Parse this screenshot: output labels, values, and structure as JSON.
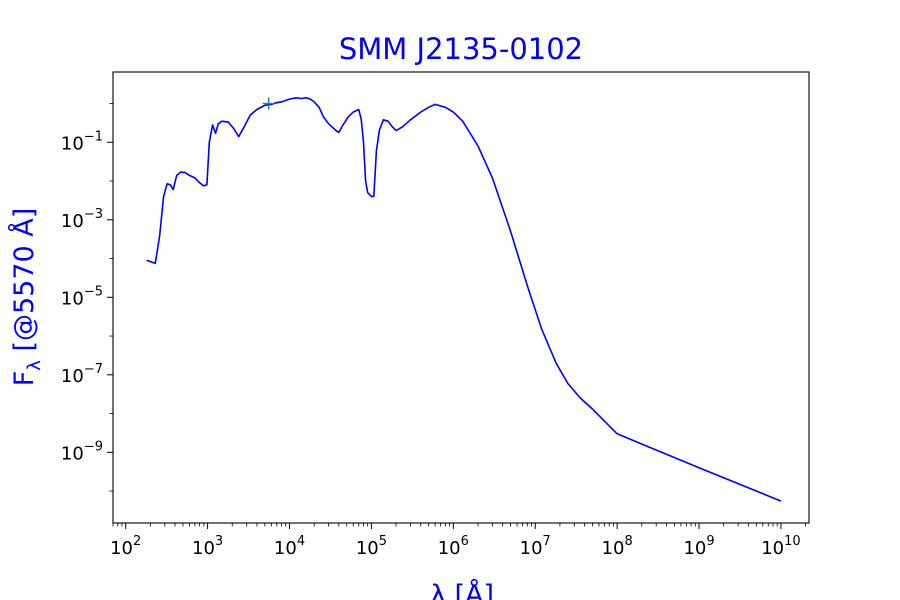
{
  "chart_data": {
    "type": "line",
    "title": "SMM J2135-0102",
    "xlabel": "λ [Å]",
    "ylabel": "F",
    "ylabel_subscript": "λ",
    "ylabel_suffix": " [@5570 Å]",
    "x_scale": "log",
    "y_scale": "log",
    "xlim": [
      70,
      22000000000.0
    ],
    "ylim": [
      1.5e-11,
      6.5
    ],
    "grid": false,
    "x_ticks": [
      {
        "base": "10",
        "exp": "2",
        "value": 100
      },
      {
        "base": "10",
        "exp": "3",
        "value": 1000
      },
      {
        "base": "10",
        "exp": "4",
        "value": 10000
      },
      {
        "base": "10",
        "exp": "5",
        "value": 100000
      },
      {
        "base": "10",
        "exp": "6",
        "value": 1000000
      },
      {
        "base": "10",
        "exp": "7",
        "value": 10000000
      },
      {
        "base": "10",
        "exp": "8",
        "value": 100000000
      },
      {
        "base": "10",
        "exp": "9",
        "value": 1000000000
      },
      {
        "base": "10",
        "exp": "10",
        "value": 10000000000
      }
    ],
    "y_ticks": [
      {
        "base": "10",
        "exp": "−9",
        "value": 1e-09
      },
      {
        "base": "10",
        "exp": "−7",
        "value": 1e-07
      },
      {
        "base": "10",
        "exp": "−5",
        "value": 1e-05
      },
      {
        "base": "10",
        "exp": "−3",
        "value": 0.001
      },
      {
        "base": "10",
        "exp": "−1",
        "value": 0.1
      }
    ],
    "series": [
      {
        "color": "#0000ff",
        "points": [
          [
            180,
            9e-05
          ],
          [
            230,
            7.5e-05
          ],
          [
            260,
            0.0004
          ],
          [
            290,
            0.004
          ],
          [
            320,
            0.0085
          ],
          [
            350,
            0.008
          ],
          [
            380,
            0.006
          ],
          [
            420,
            0.014
          ],
          [
            470,
            0.017
          ],
          [
            530,
            0.0165
          ],
          [
            600,
            0.014
          ],
          [
            700,
            0.012
          ],
          [
            800,
            0.009
          ],
          [
            900,
            0.0075
          ],
          [
            980,
            0.008
          ],
          [
            1050,
            0.1
          ],
          [
            1150,
            0.28
          ],
          [
            1250,
            0.17
          ],
          [
            1350,
            0.3
          ],
          [
            1500,
            0.35
          ],
          [
            1800,
            0.33
          ],
          [
            2100,
            0.22
          ],
          [
            2400,
            0.14
          ],
          [
            2800,
            0.25
          ],
          [
            3300,
            0.5
          ],
          [
            4000,
            0.7
          ],
          [
            5000,
            0.9
          ],
          [
            6000,
            0.95
          ],
          [
            7000,
            1.05
          ],
          [
            8000,
            1.1
          ],
          [
            9000,
            1.2
          ],
          [
            10000,
            1.3
          ],
          [
            12000,
            1.4
          ],
          [
            14000,
            1.35
          ],
          [
            16000,
            1.4
          ],
          [
            18000,
            1.3
          ],
          [
            20000,
            1.1
          ],
          [
            23000,
            0.8
          ],
          [
            26000,
            0.45
          ],
          [
            30000,
            0.3
          ],
          [
            33000,
            0.25
          ],
          [
            37000,
            0.2
          ],
          [
            40000,
            0.18
          ],
          [
            45000,
            0.28
          ],
          [
            52000,
            0.45
          ],
          [
            60000,
            0.6
          ],
          [
            70000,
            0.7
          ],
          [
            75000,
            0.4
          ],
          [
            80000,
            0.1
          ],
          [
            85000,
            0.01
          ],
          [
            90000,
            0.005
          ],
          [
            100000,
            0.004
          ],
          [
            107000,
            0.004
          ],
          [
            115000,
            0.06
          ],
          [
            125000,
            0.2
          ],
          [
            140000,
            0.38
          ],
          [
            160000,
            0.35
          ],
          [
            180000,
            0.25
          ],
          [
            200000,
            0.2
          ],
          [
            240000,
            0.25
          ],
          [
            300000,
            0.38
          ],
          [
            400000,
            0.6
          ],
          [
            500000,
            0.8
          ],
          [
            600000,
            0.95
          ],
          [
            800000,
            0.8
          ],
          [
            1000000,
            0.6
          ],
          [
            1300000,
            0.35
          ],
          [
            2000000,
            0.08
          ],
          [
            3000000,
            0.012
          ],
          [
            5000000,
            0.0005
          ],
          [
            8000000,
            2e-05
          ],
          [
            12000000,
            1.5e-06
          ],
          [
            18000000,
            2e-07
          ],
          [
            25000000,
            6e-08
          ],
          [
            35000000,
            2.6e-08
          ],
          [
            50000000,
            1.3e-08
          ],
          [
            100000000,
            3e-09
          ],
          [
            1000000000,
            4e-10
          ],
          [
            10000000000,
            5.5e-11
          ]
        ]
      }
    ],
    "marker": {
      "symbol": "+",
      "color": "#1f77b4",
      "x": 5570,
      "y": 1.0
    }
  }
}
